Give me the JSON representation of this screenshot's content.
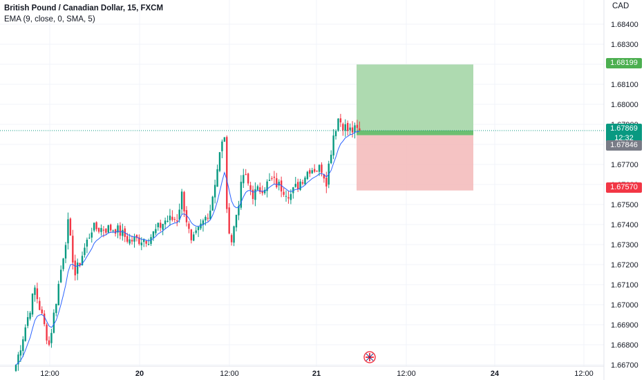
{
  "legend": {
    "symbol": "British Pound / Canadian Dollar, 15, FXCM",
    "indicator": "EMA (9, close, 0, SMA, 5)"
  },
  "currency": "CAD",
  "colors": {
    "up": "#089981",
    "down": "#f23645",
    "ema": "#2962ff",
    "profit_zone": "#a5d6a7",
    "loss_zone": "#f4bcbc",
    "last_price": "#089981",
    "entry_price": "#787b86",
    "take_profit": "#4caf50",
    "stop_loss": "#f23645"
  },
  "price_tags": {
    "take_profit": "1.68199",
    "last_price": "1.67869",
    "countdown": "12:32",
    "entry": "1.67846",
    "stop_loss": "1.67570"
  },
  "chart_data": {
    "type": "candlestick",
    "title": "British Pound / Canadian Dollar, 15, FXCM",
    "ylabel": "CAD",
    "ylim": [
      1.6667,
      1.6853
    ],
    "y_ticks": [
      "1.68400",
      "1.68300",
      "1.68200",
      "1.68100",
      "1.68000",
      "1.67900",
      "1.67800",
      "1.67700",
      "1.67600",
      "1.67500",
      "1.67400",
      "1.67300",
      "1.67200",
      "1.67100",
      "1.67000",
      "1.66900",
      "1.66800",
      "1.66700"
    ],
    "x_ticks": [
      "12:00",
      "20",
      "12:00",
      "21",
      "12:00",
      "24",
      "12:00"
    ],
    "series": [
      {
        "name": "EMA (9, close, 0, SMA, 5)",
        "type": "line"
      }
    ],
    "key_points": [
      {
        "bar": 0,
        "close": 1.667
      },
      {
        "bar": 8,
        "close": 1.6708
      },
      {
        "bar": 14,
        "close": 1.668
      },
      {
        "bar": 22,
        "close": 1.674
      },
      {
        "bar": 25,
        "close": 1.6715
      },
      {
        "bar": 32,
        "close": 1.6738
      },
      {
        "bar": 42,
        "close": 1.6738
      },
      {
        "bar": 48,
        "close": 1.6732
      },
      {
        "bar": 56,
        "close": 1.6733
      },
      {
        "bar": 63,
        "close": 1.6742
      },
      {
        "bar": 68,
        "close": 1.6743
      },
      {
        "bar": 70,
        "close": 1.6755
      },
      {
        "bar": 74,
        "close": 1.673
      },
      {
        "bar": 82,
        "close": 1.6748
      },
      {
        "bar": 86,
        "close": 1.6775
      },
      {
        "bar": 88,
        "close": 1.6785
      },
      {
        "bar": 89,
        "close": 1.6745
      },
      {
        "bar": 91,
        "close": 1.6732
      },
      {
        "bar": 96,
        "close": 1.6765
      },
      {
        "bar": 100,
        "close": 1.6755
      },
      {
        "bar": 108,
        "close": 1.6762
      },
      {
        "bar": 116,
        "close": 1.6755
      },
      {
        "bar": 124,
        "close": 1.6768
      },
      {
        "bar": 129,
        "close": 1.6768
      },
      {
        "bar": 131,
        "close": 1.6762
      },
      {
        "bar": 134,
        "close": 1.6785
      },
      {
        "bar": 136,
        "close": 1.6793
      },
      {
        "bar": 140,
        "close": 1.6787
      },
      {
        "bar": 145,
        "close": 1.67869
      }
    ],
    "position": {
      "type": "long",
      "entry": 1.67846,
      "take_profit": 1.68199,
      "stop_loss": 1.6757
    },
    "last_price": 1.67869,
    "grid": true
  }
}
